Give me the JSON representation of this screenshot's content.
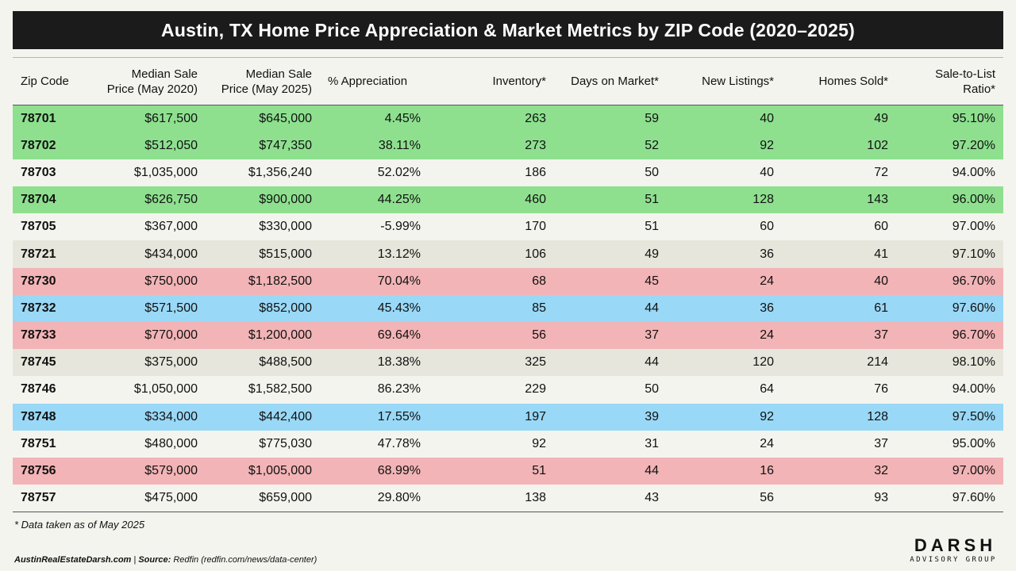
{
  "title": "Austin, TX Home Price Appreciation & Market Metrics by ZIP Code (2020–2025)",
  "columns": [
    {
      "line1": "Zip Code",
      "line2": ""
    },
    {
      "line1": "Median Sale",
      "line2": "Price (May 2020)"
    },
    {
      "line1": "Median Sale",
      "line2": "Price (May 2025)"
    },
    {
      "line1": "% Appreciation",
      "line2": ""
    },
    {
      "line1": "Inventory*",
      "line2": ""
    },
    {
      "line1": "Days on Market*",
      "line2": ""
    },
    {
      "line1": "New Listings*",
      "line2": ""
    },
    {
      "line1": "Homes Sold*",
      "line2": ""
    },
    {
      "line1": "Sale-to-List",
      "line2": "Ratio*"
    }
  ],
  "row_colors": {
    "green": "#8ee08f",
    "blue": "#99d8f6",
    "pink": "#f2b4b6",
    "grey": "#e6e6dc",
    "white": "#f4f4ef"
  },
  "rows": [
    {
      "highlight": "green",
      "cells": [
        "78701",
        "$617,500",
        "$645,000",
        "4.45%",
        "263",
        "59",
        "40",
        "49",
        "95.10%"
      ]
    },
    {
      "highlight": "green",
      "cells": [
        "78702",
        "$512,050",
        "$747,350",
        "38.11%",
        "273",
        "52",
        "92",
        "102",
        "97.20%"
      ]
    },
    {
      "highlight": "white",
      "cells": [
        "78703",
        "$1,035,000",
        "$1,356,240",
        "52.02%",
        "186",
        "50",
        "40",
        "72",
        "94.00%"
      ]
    },
    {
      "highlight": "green",
      "cells": [
        "78704",
        "$626,750",
        "$900,000",
        "44.25%",
        "460",
        "51",
        "128",
        "143",
        "96.00%"
      ]
    },
    {
      "highlight": "white",
      "cells": [
        "78705",
        "$367,000",
        "$330,000",
        "-5.99%",
        "170",
        "51",
        "60",
        "60",
        "97.00%"
      ]
    },
    {
      "highlight": "grey",
      "cells": [
        "78721",
        "$434,000",
        "$515,000",
        "13.12%",
        "106",
        "49",
        "36",
        "41",
        "97.10%"
      ]
    },
    {
      "highlight": "pink",
      "cells": [
        "78730",
        "$750,000",
        "$1,182,500",
        "70.04%",
        "68",
        "45",
        "24",
        "40",
        "96.70%"
      ]
    },
    {
      "highlight": "blue",
      "cells": [
        "78732",
        "$571,500",
        "$852,000",
        "45.43%",
        "85",
        "44",
        "36",
        "61",
        "97.60%"
      ]
    },
    {
      "highlight": "pink",
      "cells": [
        "78733",
        "$770,000",
        "$1,200,000",
        "69.64%",
        "56",
        "37",
        "24",
        "37",
        "96.70%"
      ]
    },
    {
      "highlight": "grey",
      "cells": [
        "78745",
        "$375,000",
        "$488,500",
        "18.38%",
        "325",
        "44",
        "120",
        "214",
        "98.10%"
      ]
    },
    {
      "highlight": "white",
      "cells": [
        "78746",
        "$1,050,000",
        "$1,582,500",
        "86.23%",
        "229",
        "50",
        "64",
        "76",
        "94.00%"
      ]
    },
    {
      "highlight": "blue",
      "cells": [
        "78748",
        "$334,000",
        "$442,400",
        "17.55%",
        "197",
        "39",
        "92",
        "128",
        "97.50%"
      ]
    },
    {
      "highlight": "white",
      "cells": [
        "78751",
        "$480,000",
        "$775,030",
        "47.78%",
        "92",
        "31",
        "24",
        "37",
        "95.00%"
      ]
    },
    {
      "highlight": "pink",
      "cells": [
        "78756",
        "$579,000",
        "$1,005,000",
        "68.99%",
        "51",
        "44",
        "16",
        "32",
        "97.00%"
      ]
    },
    {
      "highlight": "white",
      "cells": [
        "78757",
        "$475,000",
        "$659,000",
        "29.80%",
        "138",
        "43",
        "56",
        "93",
        "97.60%"
      ]
    }
  ],
  "footnote": "* Data taken as of May 2025",
  "source": {
    "site": "AustinRealEstateDarsh.com",
    "separator": " | ",
    "label": "Source:",
    "text": " Redfin (redfin.com/news/data-center)"
  },
  "logo": {
    "main": "DARSH",
    "sub": "ADVISORY GROUP"
  }
}
